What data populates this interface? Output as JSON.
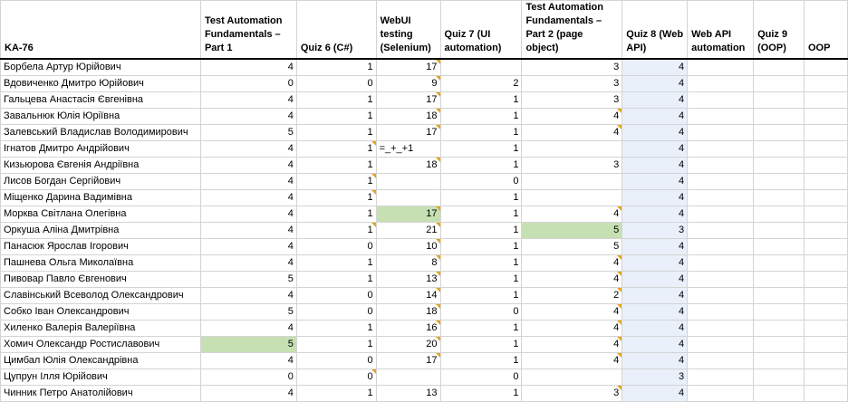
{
  "sheet": {
    "headers": [
      "KA-76",
      "Test Automation Fundamentals – Part 1",
      "Quiz 6 (C#)",
      "WebUI testing (Selenium)",
      "Quiz 7 (UI automation)",
      "Test Automation Fundamentals – Part 2 (page object)",
      "Quiz 8 (Web API)",
      "Web API automation",
      "Quiz 9 (OOP)",
      "OOP"
    ],
    "rows": [
      {
        "name": "Борбела Артур Юрійович",
        "c1": "4",
        "c2": "1",
        "c3": "17",
        "c4": "",
        "c5": "3",
        "c6": "4"
      },
      {
        "name": "Вдовиченко Дмитро Юрійович",
        "c1": "0",
        "c2": "0",
        "c3": "9",
        "c4": "2",
        "c5": "3",
        "c6": "4"
      },
      {
        "name": "Гальцева Анастасія Євгенівна",
        "c1": "4",
        "c2": "1",
        "c3": "17",
        "c4": "1",
        "c5": "3",
        "c6": "4"
      },
      {
        "name": "Завальнюк Юлія Юріївна",
        "c1": "4",
        "c2": "1",
        "c3": "18",
        "c4": "1",
        "c5": "4",
        "c6": "4"
      },
      {
        "name": "Залевський Владислав Володимирович",
        "c1": "5",
        "c2": "1",
        "c3": "17",
        "c4": "1",
        "c5": "4",
        "c6": "4"
      },
      {
        "name": "Ігнатов Дмитро Андрійович",
        "c1": "4",
        "c2": "1",
        "c3": "=_+_+1",
        "c4": "1",
        "c5": "",
        "c6": "4"
      },
      {
        "name": "Кизьюрова Євгенія Андріївна",
        "c1": "4",
        "c2": "1",
        "c3": "18",
        "c4": "1",
        "c5": "3",
        "c6": "4"
      },
      {
        "name": "Лисов Богдан Сергійович",
        "c1": "4",
        "c2": "1",
        "c3": "",
        "c4": "0",
        "c5": "",
        "c6": "4"
      },
      {
        "name": "Міщенко Дарина Вадимівна",
        "c1": "4",
        "c2": "1",
        "c3": "",
        "c4": "1",
        "c5": "",
        "c6": "4"
      },
      {
        "name": "Морква Світлана Олегівна",
        "c1": "4",
        "c2": "1",
        "c3": "17",
        "c4": "1",
        "c5": "4",
        "c6": "4"
      },
      {
        "name": "Оркуша Аліна Дмитрівна",
        "c1": "4",
        "c2": "1",
        "c3": "21",
        "c4": "1",
        "c5": "5",
        "c6": "3"
      },
      {
        "name": "Панасюк Ярослав Ігорович",
        "c1": "4",
        "c2": "0",
        "c3": "10",
        "c4": "1",
        "c5": "5",
        "c6": "4"
      },
      {
        "name": "Пашнева Ольга Миколаївна",
        "c1": "4",
        "c2": "1",
        "c3": "8",
        "c4": "1",
        "c5": "4",
        "c6": "4"
      },
      {
        "name": "Пивовар Павло Євгенович",
        "c1": "5",
        "c2": "1",
        "c3": "13",
        "c4": "1",
        "c5": "4",
        "c6": "4"
      },
      {
        "name": "Славінський Всеволод Олександрович",
        "c1": "4",
        "c2": "0",
        "c3": "14",
        "c4": "1",
        "c5": "2",
        "c6": "4"
      },
      {
        "name": "Собко Іван Олександрович",
        "c1": "5",
        "c2": "0",
        "c3": "18",
        "c4": "0",
        "c5": "4",
        "c6": "4"
      },
      {
        "name": "Хиленко Валерія Валеріївна",
        "c1": "4",
        "c2": "1",
        "c3": "16",
        "c4": "1",
        "c5": "4",
        "c6": "4"
      },
      {
        "name": "Хомич Олександр Ростиславович",
        "c1": "5",
        "c2": "1",
        "c3": "20",
        "c4": "1",
        "c5": "4",
        "c6": "4"
      },
      {
        "name": "Цимбал Юлія Олександрівна",
        "c1": "4",
        "c2": "0",
        "c3": "17",
        "c4": "1",
        "c5": "4",
        "c6": "4"
      },
      {
        "name": "Цупрун Ілля Юрійович",
        "c1": "0",
        "c2": "0",
        "c3": "",
        "c4": "0",
        "c5": "",
        "c6": "3"
      },
      {
        "name": "Чинник Петро Анатолійович",
        "c1": "4",
        "c2": "1",
        "c3": "13",
        "c4": "1",
        "c5": "3",
        "c6": "4"
      }
    ],
    "colors": {
      "highlight_green": "#c6e0b4",
      "selected_column": "#e9f0fa",
      "comment_marker": "#e8a317"
    }
  }
}
